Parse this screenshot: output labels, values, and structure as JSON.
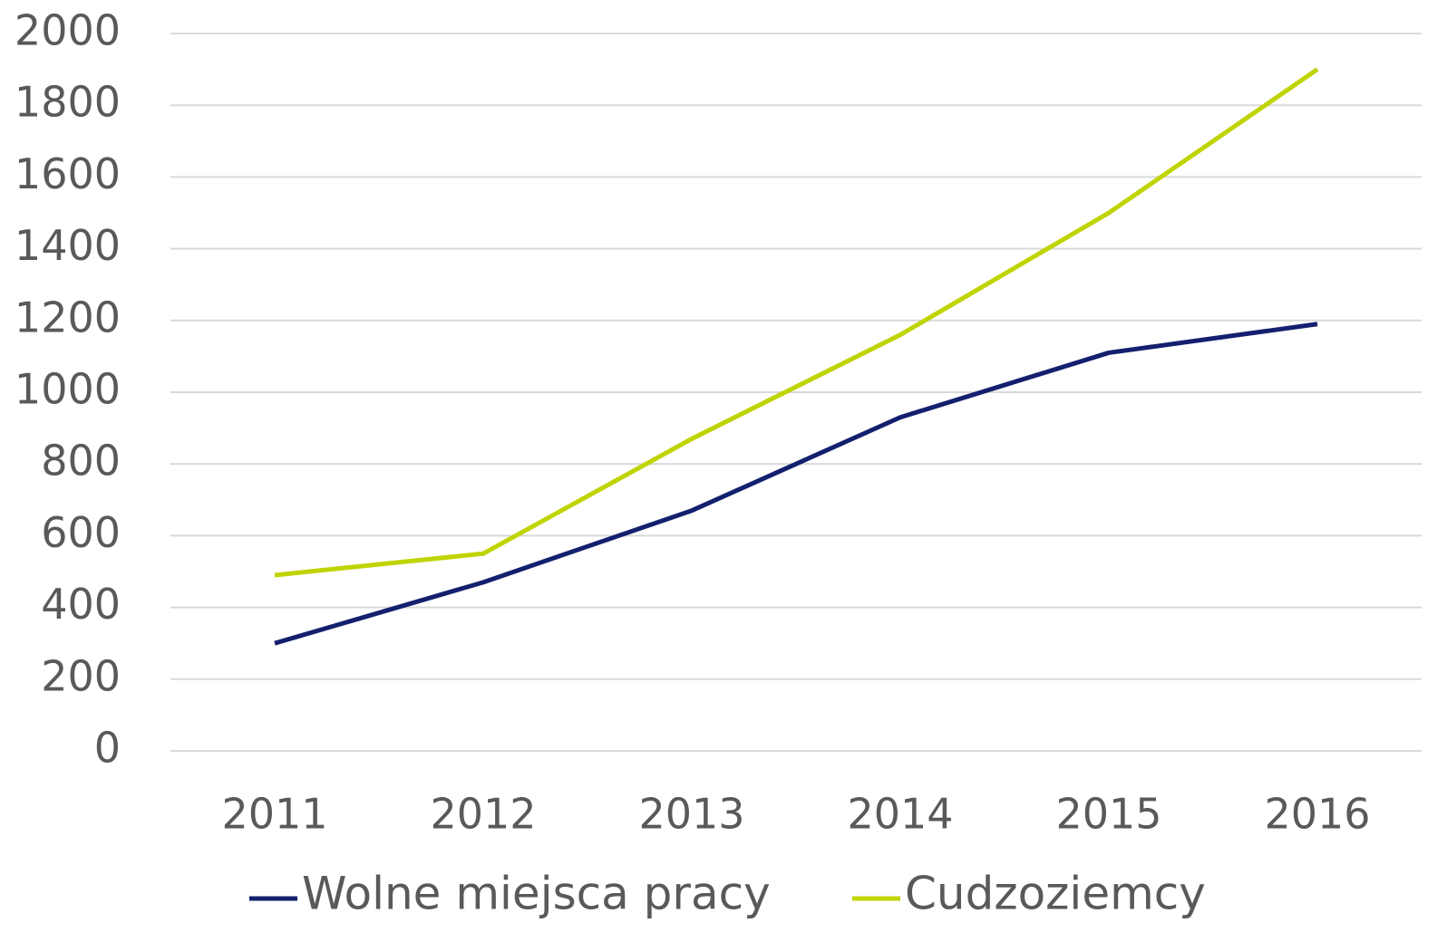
{
  "chart_data": {
    "type": "line",
    "categories": [
      "2011",
      "2012",
      "2013",
      "2014",
      "2015",
      "2016"
    ],
    "series": [
      {
        "name": "Wolne miejsca pracy",
        "color": "#13206e",
        "values": [
          300,
          470,
          670,
          930,
          1110,
          1190
        ]
      },
      {
        "name": "Cudzoziemcy",
        "color": "#bfd400",
        "values": [
          490,
          550,
          870,
          1160,
          1500,
          1900
        ]
      }
    ],
    "ylim": [
      0,
      2000
    ],
    "yticks": [
      0,
      200,
      400,
      600,
      800,
      1000,
      1200,
      1400,
      1600,
      1800,
      2000
    ],
    "grid": true,
    "legend": "bottom"
  }
}
